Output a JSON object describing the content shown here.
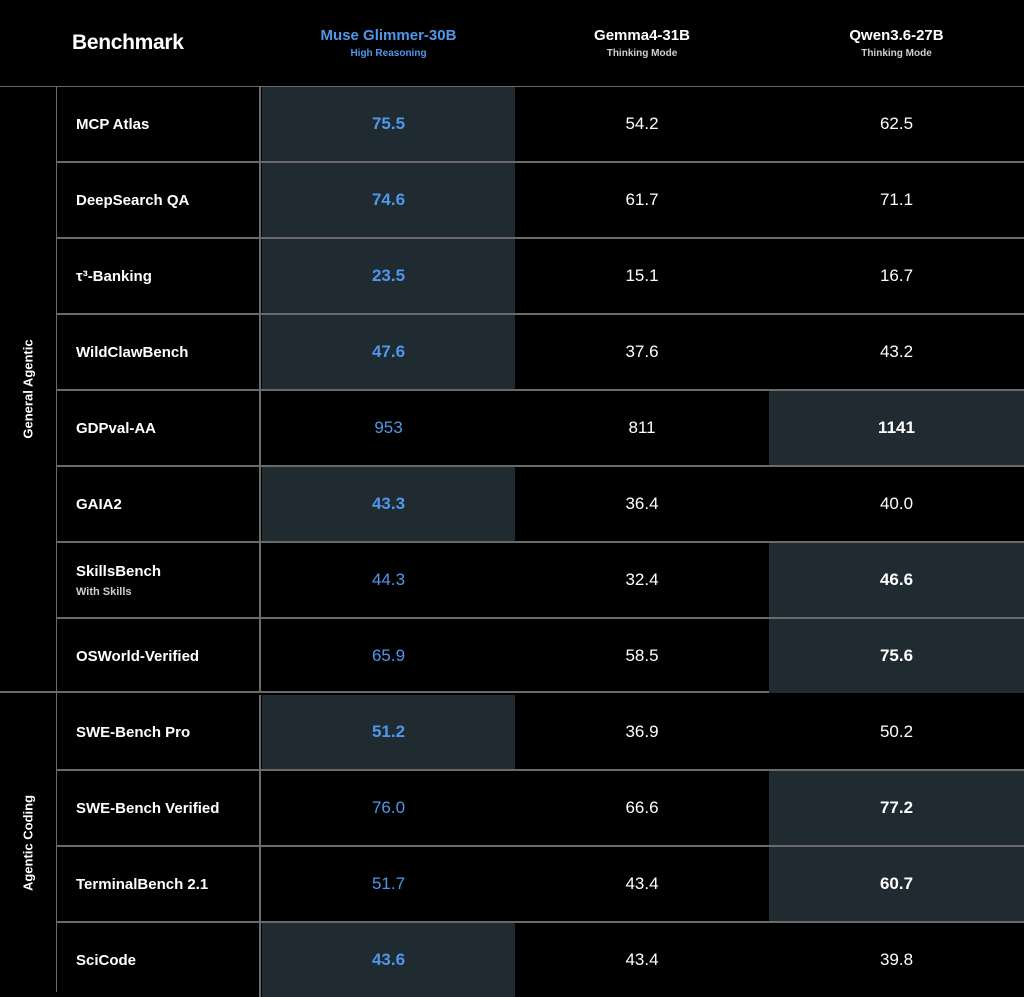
{
  "header": {
    "benchmark": "Benchmark",
    "models": [
      {
        "name": "Muse Glimmer-30B",
        "mode": "High Reasoning",
        "color": "#4f97e8"
      },
      {
        "name": "Gemma4-31B",
        "mode": "Thinking Mode"
      },
      {
        "name": "Qwen3.6-27B",
        "mode": "Thinking Mode"
      }
    ]
  },
  "groups": [
    {
      "label": "General Agentic"
    },
    {
      "label": "Agentic Coding"
    }
  ],
  "rows": [
    {
      "name": "MCP Atlas",
      "sub": "",
      "muse": "75.5",
      "gemma": "54.2",
      "qwen": "62.5"
    },
    {
      "name": "DeepSearch QA",
      "sub": "",
      "muse": "74.6",
      "gemma": "61.7",
      "qwen": "71.1"
    },
    {
      "name": "τ³-Banking",
      "sub": "",
      "muse": "23.5",
      "gemma": "15.1",
      "qwen": "16.7"
    },
    {
      "name": "WildClawBench",
      "sub": "",
      "muse": "47.6",
      "gemma": "37.6",
      "qwen": "43.2"
    },
    {
      "name": "GDPval-AA",
      "sub": "",
      "muse": "953",
      "gemma": "811",
      "qwen": "1141"
    },
    {
      "name": "GAIA2",
      "sub": "",
      "muse": "43.3",
      "gemma": "36.4",
      "qwen": "40.0"
    },
    {
      "name": "SkillsBench",
      "sub": "With Skills",
      "muse": "44.3",
      "gemma": "32.4",
      "qwen": "46.6"
    },
    {
      "name": "OSWorld-Verified",
      "sub": "",
      "muse": "65.9",
      "gemma": "58.5",
      "qwen": "75.6"
    },
    {
      "name": "SWE-Bench Pro",
      "sub": "",
      "muse": "51.2",
      "gemma": "36.9",
      "qwen": "50.2"
    },
    {
      "name": "SWE-Bench Verified",
      "sub": "",
      "muse": "76.0",
      "gemma": "66.6",
      "qwen": "77.2"
    },
    {
      "name": "TerminalBench 2.1",
      "sub": "",
      "muse": "51.7",
      "gemma": "43.4",
      "qwen": "60.7"
    },
    {
      "name": "SciCode",
      "sub": "",
      "muse": "43.6",
      "gemma": "43.4",
      "qwen": "39.8"
    }
  ],
  "chart_data": {
    "type": "table",
    "columns": [
      "Benchmark",
      "Muse Glimmer-30B",
      "Gemma4-31B",
      "Qwen3.6-27B"
    ],
    "column_subtitles": [
      "",
      "High Reasoning",
      "Thinking Mode",
      "Thinking Mode"
    ],
    "groups": [
      {
        "label": "General Agentic",
        "benchmarks": [
          "MCP Atlas",
          "DeepSearch QA",
          "τ³-Banking",
          "WildClawBench",
          "GDPval-AA",
          "GAIA2",
          "SkillsBench",
          "OSWorld-Verified"
        ]
      },
      {
        "label": "Agentic Coding",
        "benchmarks": [
          "SWE-Bench Pro",
          "SWE-Bench Verified",
          "TerminalBench 2.1",
          "SciCode"
        ]
      }
    ],
    "series": [
      {
        "name": "Muse Glimmer-30B",
        "values": [
          75.5,
          74.6,
          23.5,
          47.6,
          953,
          43.3,
          44.3,
          65.9,
          51.2,
          76.0,
          51.7,
          43.6
        ]
      },
      {
        "name": "Gemma4-31B",
        "values": [
          54.2,
          61.7,
          15.1,
          37.6,
          811,
          36.4,
          32.4,
          58.5,
          36.9,
          66.6,
          43.4,
          43.4
        ]
      },
      {
        "name": "Qwen3.6-27B",
        "values": [
          62.5,
          71.1,
          16.7,
          43.2,
          1141,
          40.0,
          46.6,
          75.6,
          50.2,
          77.2,
          60.7,
          39.8
        ]
      }
    ],
    "highlight": "best score per row shaded and bold",
    "colors": {
      "muse": "#4f97e8",
      "highlight_bg": "#1f2a31",
      "background": "#000000"
    }
  }
}
